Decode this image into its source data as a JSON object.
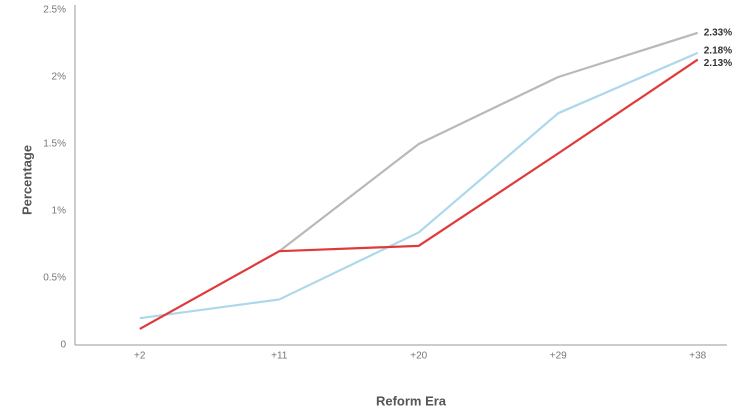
{
  "chart_data": {
    "type": "line",
    "y_label": "Percentage",
    "x_label": "Reform Era",
    "categories": [
      "+2",
      "+11",
      "+20",
      "+29",
      "+38"
    ],
    "series": [
      {
        "color": "#bdb7b7",
        "values": [
          null,
          0.7,
          1.5,
          2.0,
          2.33
        ],
        "value_labels": [
          null,
          null,
          null,
          null,
          "2.33%"
        ]
      },
      {
        "color": "#acd8ec",
        "values": [
          0.2,
          0.34,
          0.84,
          1.73,
          2.18
        ],
        "value_labels": [
          null,
          null,
          null,
          null,
          "2.18%"
        ]
      },
      {
        "color": "#e0393a",
        "values": [
          0.12,
          0.7,
          0.74,
          1.43,
          2.13
        ],
        "value_labels": [
          null,
          null,
          null,
          null,
          "2.13%"
        ]
      }
    ],
    "ylim": [
      0,
      2.5
    ],
    "yticks": [
      0,
      {
        "value": 0.5,
        "label": "0.5%"
      },
      {
        "value": 1,
        "label": "1%"
      },
      {
        "value": 1.5,
        "label": "1.5%"
      },
      {
        "value": 2,
        "label": "2%"
      },
      {
        "value": 2.5,
        "label": "2.5%"
      }
    ],
    "grid": false
  }
}
